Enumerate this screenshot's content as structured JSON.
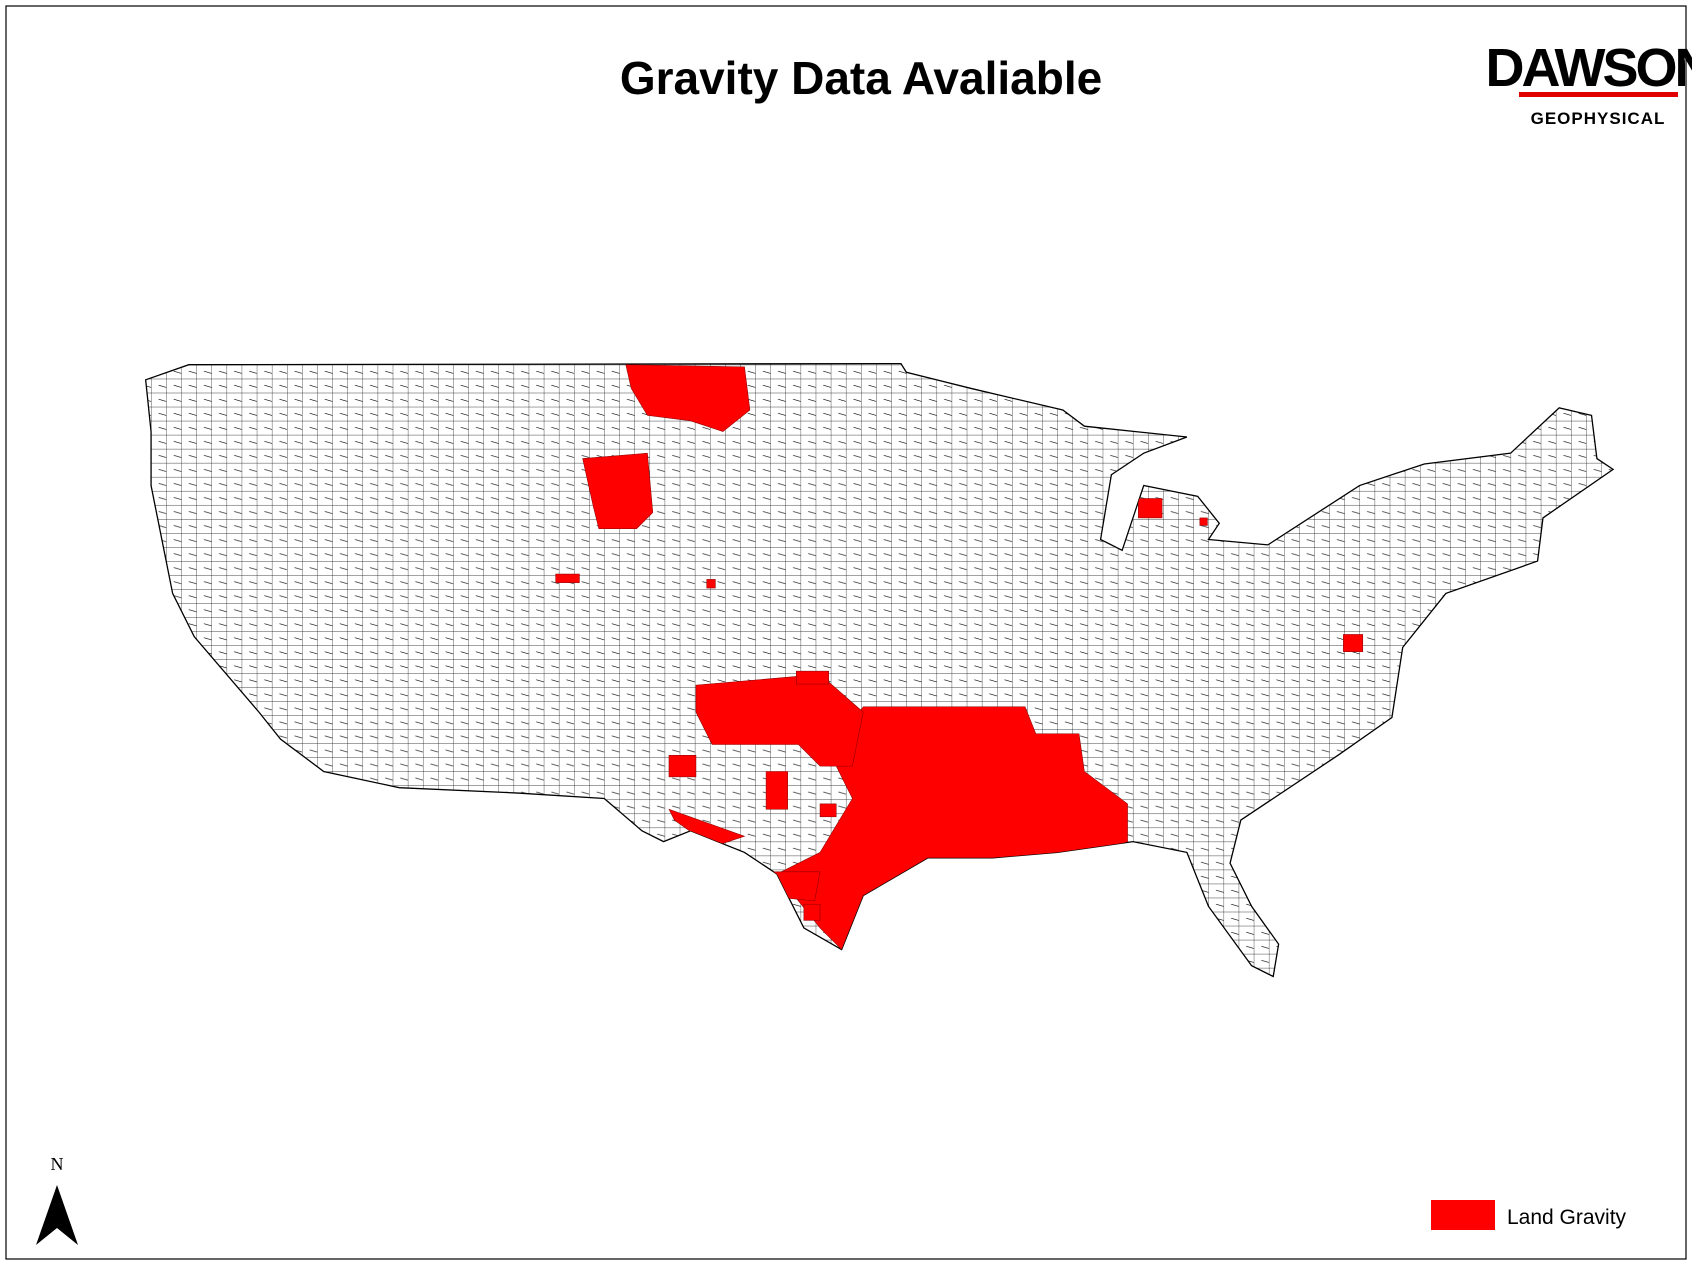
{
  "header": {
    "title": "Gravity Data Avaliable"
  },
  "logo": {
    "name": "DAWSON",
    "subtitle": "GEOPHYSICAL"
  },
  "north_arrow": {
    "label": "N"
  },
  "legend": {
    "items": [
      {
        "label": "Land Gravity",
        "color": "#ff0000"
      }
    ]
  }
}
